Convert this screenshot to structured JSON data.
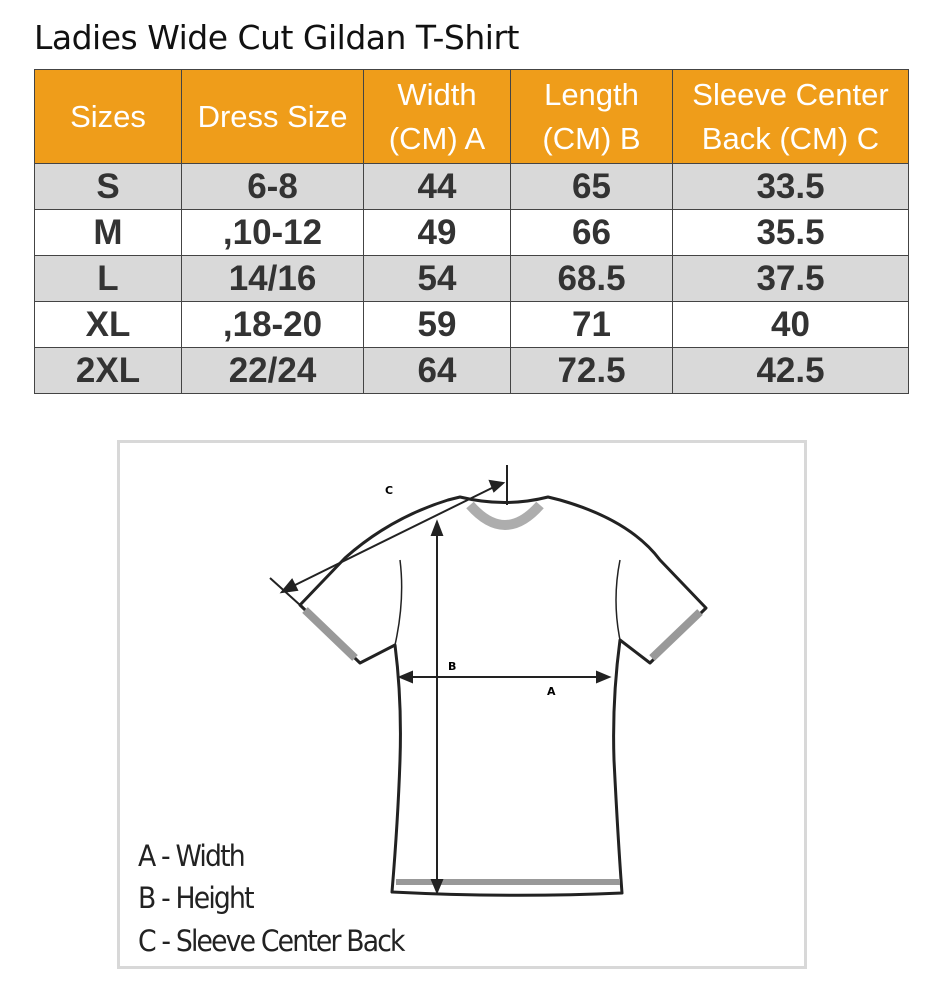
{
  "title": "Ladies Wide Cut Gildan T-Shirt",
  "table": {
    "header_color": "#ef9d1a",
    "columns": [
      {
        "line1": "Sizes",
        "line2": ""
      },
      {
        "line1": "Dress Size",
        "line2": ""
      },
      {
        "line1": "Width",
        "line2": "(CM) A"
      },
      {
        "line1": "Length",
        "line2": "(CM) B"
      },
      {
        "line1": "Sleeve Center",
        "line2": "Back (CM) C"
      }
    ],
    "rows": [
      {
        "size": "S",
        "dress": "6-8",
        "width": "44",
        "length": "65",
        "sleeve": "33.5"
      },
      {
        "size": "M",
        "dress": ",10-12",
        "width": "49",
        "length": "66",
        "sleeve": "35.5"
      },
      {
        "size": "L",
        "dress": "14/16",
        "width": "54",
        "length": "68.5",
        "sleeve": "37.5"
      },
      {
        "size": "XL",
        "dress": ",18-20",
        "width": "59",
        "length": "71",
        "sleeve": "40"
      },
      {
        "size": "2XL",
        "dress": "22/24",
        "width": "64",
        "length": "72.5",
        "sleeve": "42.5"
      }
    ]
  },
  "diagram": {
    "labels": {
      "a": "A",
      "b": "B",
      "c": "C"
    },
    "legend": [
      "A - Width",
      "B - Height",
      "C - Sleeve Center Back"
    ]
  }
}
